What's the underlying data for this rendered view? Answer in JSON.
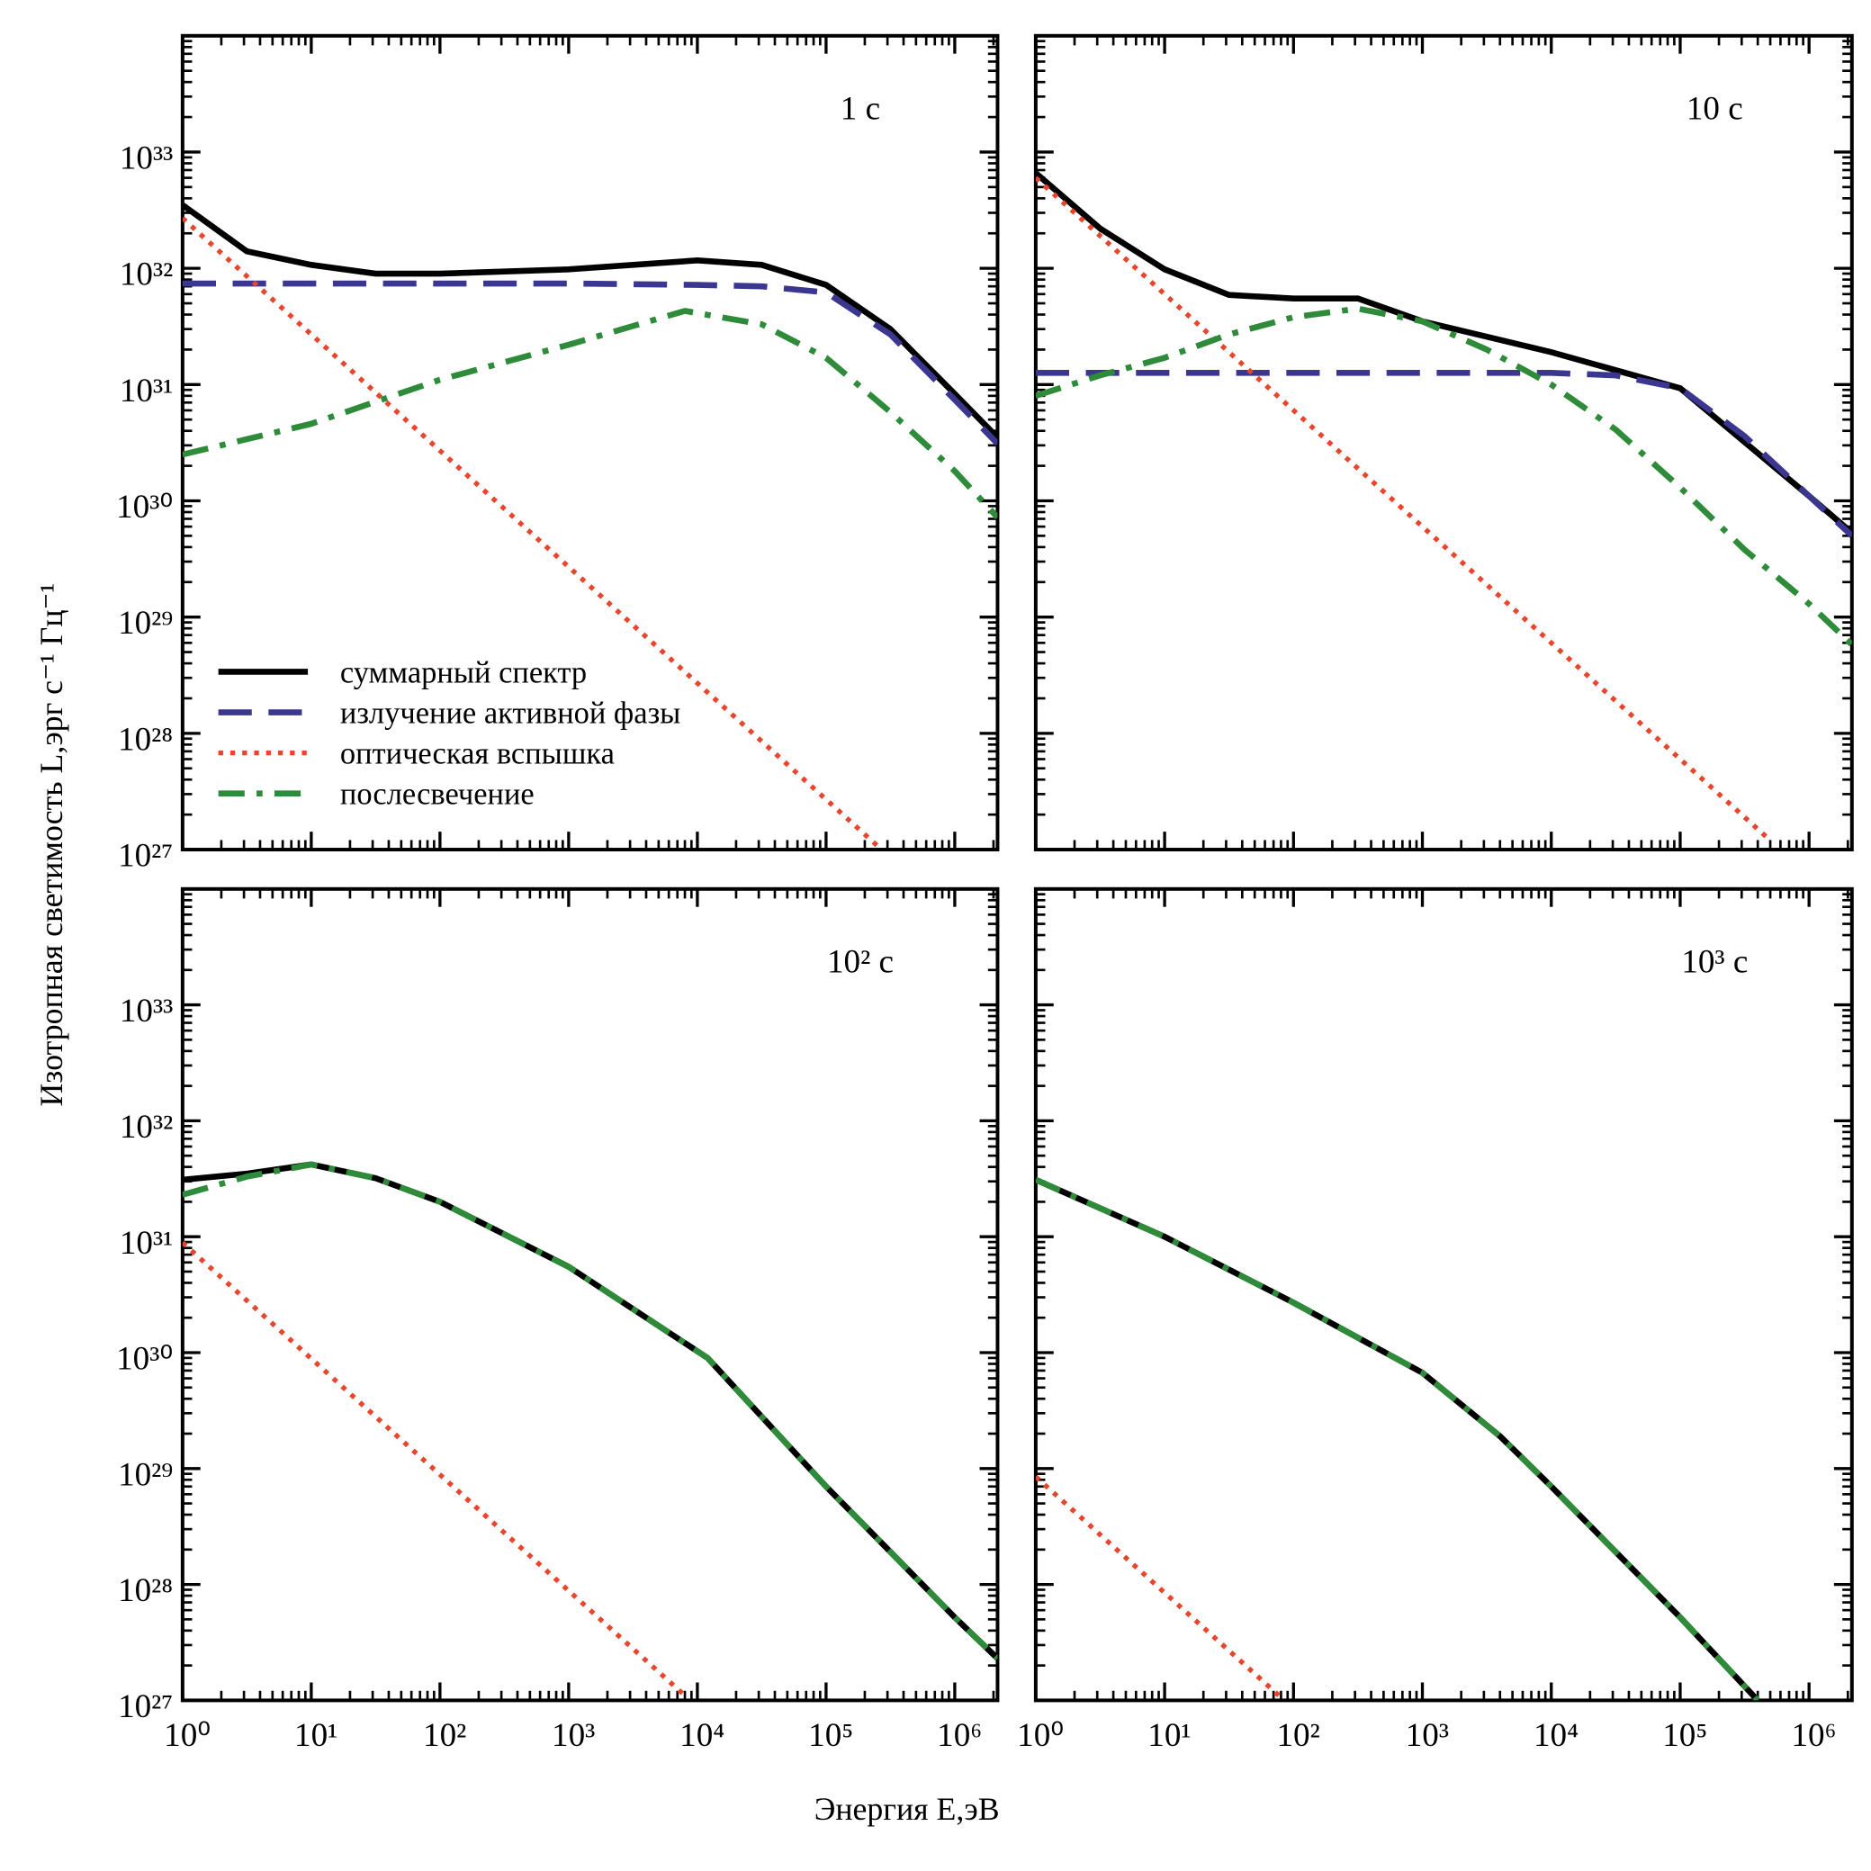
{
  "xlabel": "Энергия E,эВ",
  "ylabel": "Изотропная светимость L,эрг с⁻¹ Гц⁻¹",
  "chart_data": [
    {
      "type": "line",
      "annotation": "1 с",
      "xscale": "log",
      "yscale": "log",
      "xlim": [
        1,
        2150000
      ],
      "ylim": [
        1e+27,
        1e+34
      ],
      "xticks": [
        1,
        10,
        100,
        1000,
        10000,
        100000,
        1000000
      ],
      "yticks": [
        {
          "value": 1e+27,
          "label": "10²⁷"
        },
        {
          "value": 1e+28,
          "label": "10²⁸"
        },
        {
          "value": 1e+29,
          "label": "10²⁹"
        },
        {
          "value": 1e+30,
          "label": "10³⁰"
        },
        {
          "value": 1e+31,
          "label": "10³¹"
        },
        {
          "value": 1e+32,
          "label": "10³²"
        },
        {
          "value": 1e+33,
          "label": "10³³"
        }
      ],
      "legend": true,
      "legend_loc": "lower left",
      "series": [
        {
          "name": "суммарный спектр",
          "color": "#000000",
          "dash": "solid",
          "x": [
            1,
            3.16,
            10,
            31.6,
            100,
            1000,
            10000,
            31600,
            100000,
            316000,
            1000000,
            2150000
          ],
          "values": [
            3.5e+32,
            1.4e+32,
            1.07e+32,
            9e+31,
            9e+31,
            9.8e+31,
            1.17e+32,
            1.07e+32,
            7.2e+31,
            3e+31,
            8.3e+30,
            3.5e+30
          ]
        },
        {
          "name": "излучение активной фазы",
          "color": "#3b3791",
          "dash": "dashed",
          "x": [
            1,
            10,
            100,
            1000,
            10000,
            31600,
            100000,
            316000,
            1000000,
            2150000
          ],
          "values": [
            7.4e+31,
            7.4e+31,
            7.4e+31,
            7.4e+31,
            7.2e+31,
            7e+31,
            6.2e+31,
            2.7e+31,
            7.4e+30,
            3.1e+30
          ]
        },
        {
          "name": "оптическая вспышка",
          "color": "#e8452c",
          "dash": "dotted",
          "x": [
            1,
            250000
          ],
          "values": [
            2.7e+32,
            1.08e+27
          ]
        },
        {
          "name": "послесвечение",
          "color": "#2e8b3a",
          "dash": "dashdot",
          "x": [
            1,
            10,
            100,
            1000,
            8000,
            31600,
            100000,
            316000,
            1000000,
            2150000
          ],
          "values": [
            2.5e+30,
            4.6e+30,
            1.1e+31,
            2.2e+31,
            4.3e+31,
            3.3e+31,
            1.7e+31,
            5.8e+30,
            1.8e+30,
            7.2e+29
          ]
        }
      ]
    },
    {
      "type": "line",
      "annotation": "10 с",
      "xscale": "log",
      "yscale": "log",
      "xlim": [
        1,
        2150000
      ],
      "ylim": [
        1e+27,
        1e+34
      ],
      "xticks": [
        1,
        10,
        100,
        1000,
        10000,
        100000,
        1000000
      ],
      "yticks": [
        1e+27,
        1e+28,
        1e+29,
        1e+30,
        1e+31,
        1e+32,
        1e+33
      ],
      "series": [
        {
          "color": "#000000",
          "dash": "solid",
          "x": [
            1,
            3.16,
            10,
            31.6,
            100,
            316,
            1000,
            10000,
            100000,
            316000,
            1000000,
            2150000
          ],
          "values": [
            6.6e+32,
            2.2e+32,
            9.8e+31,
            5.9e+31,
            5.5e+31,
            5.5e+31,
            3.5e+31,
            1.9e+31,
            9.3e+30,
            3.2e+30,
            1.1e+30,
            5.3e+29
          ]
        },
        {
          "color": "#3b3791",
          "dash": "dashed",
          "x": [
            1,
            10,
            100,
            1000,
            10000,
            31600,
            100000,
            316000,
            1000000,
            2150000
          ],
          "values": [
            1.26e+31,
            1.26e+31,
            1.26e+31,
            1.26e+31,
            1.26e+31,
            1.2e+31,
            9.3e+30,
            3.6e+30,
            1.1e+30,
            5e+29
          ]
        },
        {
          "color": "#e8452c",
          "dash": "dotted",
          "x": [
            1,
            500000
          ],
          "values": [
            6e+32,
            1.2e+27
          ]
        },
        {
          "color": "#2e8b3a",
          "dash": "dashdot",
          "x": [
            1,
            3.16,
            10,
            31.6,
            100,
            316,
            1000,
            3160,
            10000,
            31600,
            100000,
            316000,
            1000000,
            2150000
          ],
          "values": [
            8e+30,
            1.2e+31,
            1.7e+31,
            2.7e+31,
            3.8e+31,
            4.5e+31,
            3.5e+31,
            2e+31,
            1e+31,
            4.1e+30,
            1.3e+30,
            3.8e+29,
            1.3e+29,
            5.8e+28
          ]
        }
      ]
    },
    {
      "type": "line",
      "annotation": "10² с",
      "xscale": "log",
      "yscale": "log",
      "xlim": [
        1,
        2150000
      ],
      "ylim": [
        1e+27,
        1e+34
      ],
      "xticks": [
        {
          "value": 1,
          "label": "10⁰"
        },
        {
          "value": 10,
          "label": "10¹"
        },
        {
          "value": 100,
          "label": "10²"
        },
        {
          "value": 1000,
          "label": "10³"
        },
        {
          "value": 10000,
          "label": "10⁴"
        },
        {
          "value": 100000,
          "label": "10⁵"
        },
        {
          "value": 1000000,
          "label": "10⁶"
        }
      ],
      "yticks": [
        {
          "value": 1e+27,
          "label": "10²⁷"
        },
        {
          "value": 1e+28,
          "label": "10²⁸"
        },
        {
          "value": 1e+29,
          "label": "10²⁹"
        },
        {
          "value": 1e+30,
          "label": "10³⁰"
        },
        {
          "value": 1e+31,
          "label": "10³¹"
        },
        {
          "value": 1e+32,
          "label": "10³²"
        },
        {
          "value": 1e+33,
          "label": "10³³"
        }
      ],
      "series": [
        {
          "color": "#e8452c",
          "dash": "dotted",
          "x": [
            1,
            8000
          ],
          "values": [
            8.9e+30,
            1.1e+27
          ]
        },
        {
          "color": "#000000",
          "dash": "solid",
          "x": [
            1,
            3.16,
            10,
            31.6,
            100,
            1000,
            12000,
            100000,
            1000000,
            2150000
          ],
          "values": [
            3.1e+31,
            3.5e+31,
            4.2e+31,
            3.2e+31,
            2e+31,
            5.5e+30,
            9e+29,
            7e+28,
            5.2e+27,
            2.3e+27
          ]
        },
        {
          "color": "#2e8b3a",
          "dash": "dashdot",
          "x": [
            1,
            3.16,
            10,
            31.6,
            100,
            1000,
            12000,
            100000,
            1000000,
            2150000
          ],
          "values": [
            2.3e+31,
            3.3e+31,
            4.2e+31,
            3.2e+31,
            2e+31,
            5.5e+30,
            9e+29,
            7e+28,
            5.2e+27,
            2.3e+27
          ]
        }
      ]
    },
    {
      "type": "line",
      "annotation": "10³ с",
      "xscale": "log",
      "yscale": "log",
      "xlim": [
        1,
        2150000
      ],
      "ylim": [
        1e+27,
        1e+34
      ],
      "xticks": [
        {
          "value": 1,
          "label": "10⁰"
        },
        {
          "value": 10,
          "label": "10¹"
        },
        {
          "value": 100,
          "label": "10²"
        },
        {
          "value": 1000,
          "label": "10³"
        },
        {
          "value": 10000,
          "label": "10⁴"
        },
        {
          "value": 100000,
          "label": "10⁵"
        },
        {
          "value": 1000000,
          "label": "10⁶"
        }
      ],
      "yticks": [
        1e+27,
        1e+28,
        1e+29,
        1e+30,
        1e+31,
        1e+32,
        1e+33
      ],
      "series": [
        {
          "color": "#e8452c",
          "dash": "dotted",
          "x": [
            1,
            80
          ],
          "values": [
            8.5e+28,
            1.06e+27
          ]
        },
        {
          "color": "#000000",
          "dash": "solid",
          "x": [
            1,
            10,
            100,
            1000,
            4000,
            10000,
            100000,
            400000
          ],
          "values": [
            3.1e+31,
            1e+31,
            2.7e+30,
            6.7e+29,
            1.9e+29,
            7e+28,
            5.2e+27,
            1e+27
          ]
        },
        {
          "color": "#2e8b3a",
          "dash": "dashdot",
          "x": [
            1,
            10,
            100,
            1000,
            4000,
            10000,
            100000,
            400000
          ],
          "values": [
            3.1e+31,
            1e+31,
            2.7e+30,
            6.7e+29,
            1.9e+29,
            7e+28,
            5.2e+27,
            1e+27
          ]
        }
      ]
    }
  ]
}
